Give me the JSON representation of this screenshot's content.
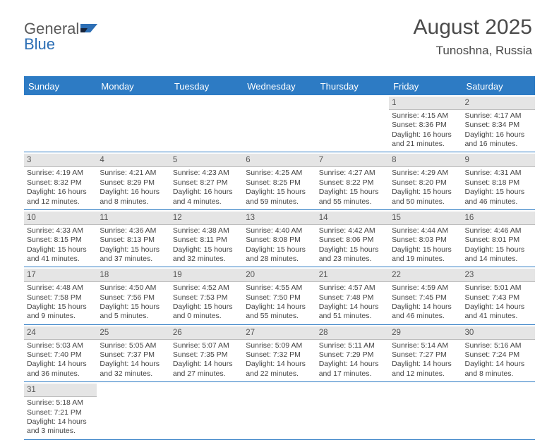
{
  "logo": {
    "text1": "General",
    "text2": "Blue"
  },
  "header": {
    "month": "August 2025",
    "location": "Tunoshna, Russia"
  },
  "colors": {
    "accent": "#2d7bc4",
    "headerText": "#ffffff",
    "daynumBg": "#e5e5e5",
    "bodyText": "#444444"
  },
  "dayNames": [
    "Sunday",
    "Monday",
    "Tuesday",
    "Wednesday",
    "Thursday",
    "Friday",
    "Saturday"
  ],
  "firstWeekday": 5,
  "daysInMonth": 31,
  "days": {
    "1": {
      "sunrise": "4:15 AM",
      "sunset": "8:36 PM",
      "dh": 16,
      "dm": 21
    },
    "2": {
      "sunrise": "4:17 AM",
      "sunset": "8:34 PM",
      "dh": 16,
      "dm": 16
    },
    "3": {
      "sunrise": "4:19 AM",
      "sunset": "8:32 PM",
      "dh": 16,
      "dm": 12
    },
    "4": {
      "sunrise": "4:21 AM",
      "sunset": "8:29 PM",
      "dh": 16,
      "dm": 8
    },
    "5": {
      "sunrise": "4:23 AM",
      "sunset": "8:27 PM",
      "dh": 16,
      "dm": 4
    },
    "6": {
      "sunrise": "4:25 AM",
      "sunset": "8:25 PM",
      "dh": 15,
      "dm": 59
    },
    "7": {
      "sunrise": "4:27 AM",
      "sunset": "8:22 PM",
      "dh": 15,
      "dm": 55
    },
    "8": {
      "sunrise": "4:29 AM",
      "sunset": "8:20 PM",
      "dh": 15,
      "dm": 50
    },
    "9": {
      "sunrise": "4:31 AM",
      "sunset": "8:18 PM",
      "dh": 15,
      "dm": 46
    },
    "10": {
      "sunrise": "4:33 AM",
      "sunset": "8:15 PM",
      "dh": 15,
      "dm": 41
    },
    "11": {
      "sunrise": "4:36 AM",
      "sunset": "8:13 PM",
      "dh": 15,
      "dm": 37
    },
    "12": {
      "sunrise": "4:38 AM",
      "sunset": "8:11 PM",
      "dh": 15,
      "dm": 32
    },
    "13": {
      "sunrise": "4:40 AM",
      "sunset": "8:08 PM",
      "dh": 15,
      "dm": 28
    },
    "14": {
      "sunrise": "4:42 AM",
      "sunset": "8:06 PM",
      "dh": 15,
      "dm": 23
    },
    "15": {
      "sunrise": "4:44 AM",
      "sunset": "8:03 PM",
      "dh": 15,
      "dm": 19
    },
    "16": {
      "sunrise": "4:46 AM",
      "sunset": "8:01 PM",
      "dh": 15,
      "dm": 14
    },
    "17": {
      "sunrise": "4:48 AM",
      "sunset": "7:58 PM",
      "dh": 15,
      "dm": 9
    },
    "18": {
      "sunrise": "4:50 AM",
      "sunset": "7:56 PM",
      "dh": 15,
      "dm": 5
    },
    "19": {
      "sunrise": "4:52 AM",
      "sunset": "7:53 PM",
      "dh": 15,
      "dm": 0
    },
    "20": {
      "sunrise": "4:55 AM",
      "sunset": "7:50 PM",
      "dh": 14,
      "dm": 55
    },
    "21": {
      "sunrise": "4:57 AM",
      "sunset": "7:48 PM",
      "dh": 14,
      "dm": 51
    },
    "22": {
      "sunrise": "4:59 AM",
      "sunset": "7:45 PM",
      "dh": 14,
      "dm": 46
    },
    "23": {
      "sunrise": "5:01 AM",
      "sunset": "7:43 PM",
      "dh": 14,
      "dm": 41
    },
    "24": {
      "sunrise": "5:03 AM",
      "sunset": "7:40 PM",
      "dh": 14,
      "dm": 36
    },
    "25": {
      "sunrise": "5:05 AM",
      "sunset": "7:37 PM",
      "dh": 14,
      "dm": 32
    },
    "26": {
      "sunrise": "5:07 AM",
      "sunset": "7:35 PM",
      "dh": 14,
      "dm": 27
    },
    "27": {
      "sunrise": "5:09 AM",
      "sunset": "7:32 PM",
      "dh": 14,
      "dm": 22
    },
    "28": {
      "sunrise": "5:11 AM",
      "sunset": "7:29 PM",
      "dh": 14,
      "dm": 17
    },
    "29": {
      "sunrise": "5:14 AM",
      "sunset": "7:27 PM",
      "dh": 14,
      "dm": 12
    },
    "30": {
      "sunrise": "5:16 AM",
      "sunset": "7:24 PM",
      "dh": 14,
      "dm": 8
    },
    "31": {
      "sunrise": "5:18 AM",
      "sunset": "7:21 PM",
      "dh": 14,
      "dm": 3
    }
  }
}
